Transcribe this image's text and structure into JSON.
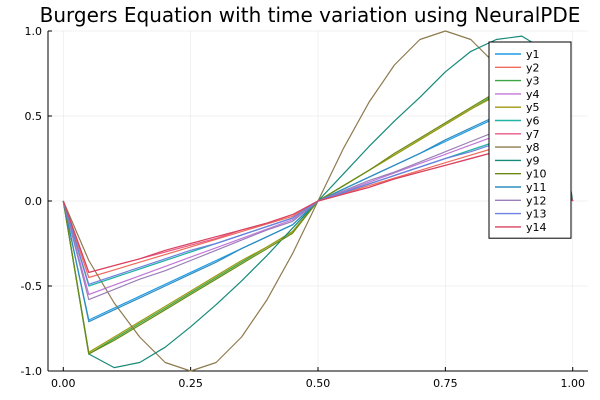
{
  "chart_data": {
    "type": "line",
    "title": "Burgers Equation with time variation using NeuralPDE",
    "xlabel": "",
    "ylabel": "",
    "xlim": [
      -0.03,
      1.03
    ],
    "ylim": [
      -1.0,
      1.0
    ],
    "x_ticks": [
      0.0,
      0.25,
      0.5,
      0.75,
      1.0
    ],
    "x_tick_labels": [
      "0.00",
      "0.25",
      "0.50",
      "0.75",
      "1.00"
    ],
    "y_ticks": [
      -1.0,
      -0.5,
      0.0,
      0.5,
      1.0
    ],
    "y_tick_labels": [
      "-1.0",
      "-0.5",
      "0.0",
      "0.5",
      "1.0"
    ],
    "grid": true,
    "legend_position": "top-right",
    "x": [
      0.0,
      0.05,
      0.1,
      0.15,
      0.2,
      0.25,
      0.3,
      0.35,
      0.4,
      0.45,
      0.5,
      0.55,
      0.6,
      0.65,
      0.7,
      0.75,
      0.8,
      0.85,
      0.9,
      0.95,
      1.0
    ],
    "series": [
      {
        "name": "y1",
        "color": "#1f9be6",
        "values": [
          0,
          -0.7,
          -0.63,
          -0.56,
          -0.49,
          -0.42,
          -0.35,
          -0.28,
          -0.21,
          -0.14,
          0,
          0.07,
          0.14,
          0.21,
          0.28,
          0.35,
          0.42,
          0.49,
          0.56,
          0.5,
          0
        ]
      },
      {
        "name": "y2",
        "color": "#ef6b5b",
        "values": [
          0,
          -0.45,
          -0.405,
          -0.36,
          -0.315,
          -0.27,
          -0.225,
          -0.18,
          -0.135,
          -0.09,
          0,
          0.045,
          0.09,
          0.135,
          0.18,
          0.225,
          0.27,
          0.315,
          0.36,
          0.32,
          0
        ]
      },
      {
        "name": "y3",
        "color": "#3aa643",
        "values": [
          0,
          -0.9,
          -0.81,
          -0.72,
          -0.63,
          -0.54,
          -0.45,
          -0.36,
          -0.27,
          -0.18,
          0,
          0.09,
          0.18,
          0.27,
          0.36,
          0.45,
          0.54,
          0.63,
          0.72,
          0.65,
          0
        ]
      },
      {
        "name": "y4",
        "color": "#c277d8",
        "values": [
          0,
          -0.55,
          -0.495,
          -0.44,
          -0.385,
          -0.33,
          -0.275,
          -0.22,
          -0.165,
          -0.11,
          0,
          0.055,
          0.11,
          0.165,
          0.22,
          0.275,
          0.33,
          0.385,
          0.44,
          0.4,
          0
        ]
      },
      {
        "name": "y5",
        "color": "#a09a10",
        "values": [
          0,
          -0.89,
          -0.8,
          -0.71,
          -0.62,
          -0.53,
          -0.44,
          -0.35,
          -0.27,
          -0.18,
          0,
          0.09,
          0.18,
          0.27,
          0.36,
          0.45,
          0.54,
          0.62,
          0.71,
          0.64,
          0
        ]
      },
      {
        "name": "y6",
        "color": "#20b3a6",
        "values": [
          0,
          -0.5,
          -0.45,
          -0.4,
          -0.35,
          -0.3,
          -0.25,
          -0.2,
          -0.15,
          -0.1,
          0,
          0.05,
          0.1,
          0.15,
          0.2,
          0.25,
          0.3,
          0.35,
          0.4,
          0.36,
          0
        ]
      },
      {
        "name": "y7",
        "color": "#e85a86",
        "values": [
          0,
          -0.42,
          -0.38,
          -0.34,
          -0.3,
          -0.26,
          -0.22,
          -0.17,
          -0.13,
          -0.08,
          0,
          0.04,
          0.08,
          0.13,
          0.17,
          0.21,
          0.25,
          0.29,
          0.34,
          0.3,
          0
        ]
      },
      {
        "name": "y8",
        "color": "#8e7a4e",
        "values": [
          0,
          -0.35,
          -0.6,
          -0.8,
          -0.95,
          -1.0,
          -0.95,
          -0.8,
          -0.58,
          -0.31,
          0,
          0.31,
          0.58,
          0.8,
          0.95,
          1.0,
          0.95,
          0.8,
          0.6,
          0.35,
          0
        ]
      },
      {
        "name": "y9",
        "color": "#168a78",
        "values": [
          0,
          -0.9,
          -0.98,
          -0.95,
          -0.86,
          -0.74,
          -0.61,
          -0.47,
          -0.32,
          -0.16,
          0,
          0.16,
          0.32,
          0.47,
          0.61,
          0.76,
          0.88,
          0.95,
          0.97,
          0.88,
          0
        ]
      },
      {
        "name": "y10",
        "color": "#6c8a14",
        "values": [
          0,
          -0.9,
          -0.82,
          -0.73,
          -0.64,
          -0.55,
          -0.46,
          -0.37,
          -0.28,
          -0.19,
          0,
          0.09,
          0.18,
          0.28,
          0.37,
          0.46,
          0.55,
          0.64,
          0.73,
          0.66,
          0
        ]
      },
      {
        "name": "y11",
        "color": "#2e8dbf",
        "values": [
          0,
          -0.71,
          -0.64,
          -0.57,
          -0.5,
          -0.43,
          -0.36,
          -0.28,
          -0.21,
          -0.14,
          0,
          0.07,
          0.14,
          0.21,
          0.28,
          0.36,
          0.43,
          0.5,
          0.57,
          0.51,
          0
        ]
      },
      {
        "name": "y12",
        "color": "#9a7fb8",
        "values": [
          0,
          -0.58,
          -0.52,
          -0.46,
          -0.41,
          -0.35,
          -0.29,
          -0.23,
          -0.17,
          -0.12,
          0,
          0.06,
          0.12,
          0.17,
          0.23,
          0.29,
          0.35,
          0.41,
          0.46,
          0.42,
          0
        ]
      },
      {
        "name": "y13",
        "color": "#6f7fe0",
        "values": [
          0,
          -0.49,
          -0.44,
          -0.39,
          -0.34,
          -0.29,
          -0.25,
          -0.2,
          -0.15,
          -0.1,
          0,
          0.05,
          0.1,
          0.15,
          0.2,
          0.25,
          0.29,
          0.34,
          0.39,
          0.35,
          0
        ]
      },
      {
        "name": "y14",
        "color": "#d9435f",
        "values": [
          0,
          -0.42,
          -0.38,
          -0.34,
          -0.29,
          -0.25,
          -0.21,
          -0.17,
          -0.13,
          -0.08,
          0,
          0.04,
          0.08,
          0.13,
          0.17,
          0.21,
          0.25,
          0.29,
          0.34,
          0.3,
          0
        ]
      }
    ]
  }
}
